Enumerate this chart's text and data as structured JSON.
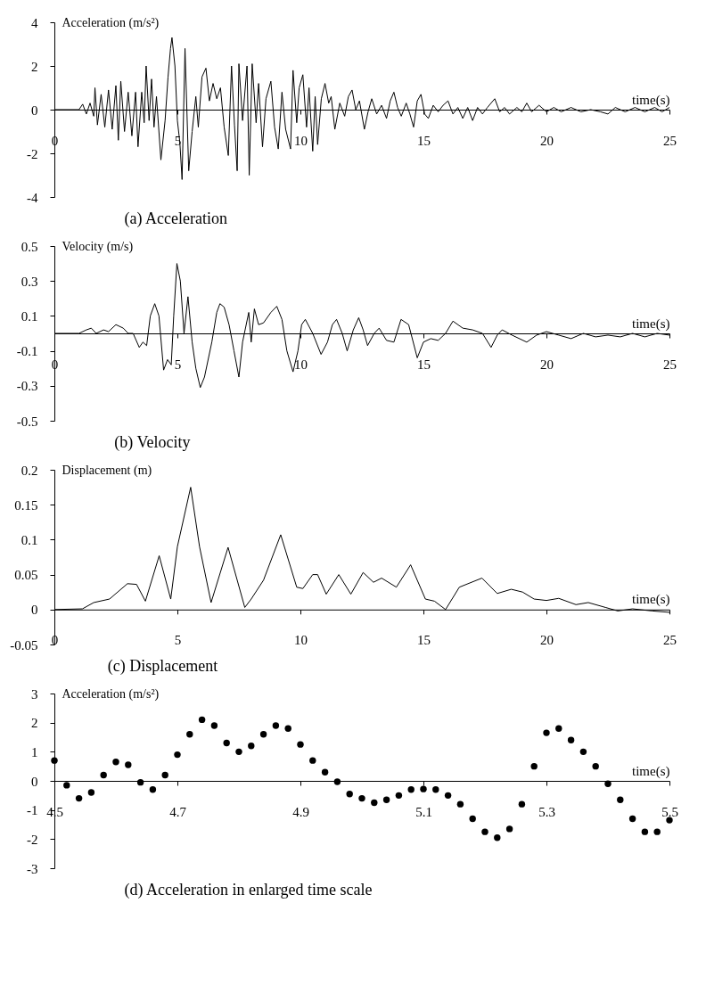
{
  "chart_data": [
    {
      "type": "line",
      "title": "(a)  Acceleration",
      "xlabel": "time(s)",
      "ylabel": "Acceleration (m/s²)",
      "color": "#000000",
      "x": [
        0,
        1.0,
        1.15,
        1.3,
        1.45,
        1.6,
        1.65,
        1.75,
        1.9,
        2.05,
        2.2,
        2.35,
        2.5,
        2.6,
        2.7,
        2.85,
        3.0,
        3.15,
        3.3,
        3.4,
        3.55,
        3.65,
        3.73,
        3.85,
        3.95,
        4.05,
        4.15,
        4.33,
        4.5,
        4.62,
        4.72,
        4.78,
        4.9,
        5.0,
        5.1,
        5.19,
        5.31,
        5.46,
        5.6,
        5.75,
        5.85,
        6.0,
        6.16,
        6.3,
        6.45,
        6.6,
        6.75,
        6.9,
        7.07,
        7.2,
        7.32,
        7.43,
        7.5,
        7.65,
        7.83,
        7.92,
        8.04,
        8.2,
        8.3,
        8.46,
        8.6,
        8.8,
        8.95,
        9.1,
        9.25,
        9.4,
        9.6,
        9.7,
        9.85,
        9.95,
        10.1,
        10.25,
        10.35,
        10.5,
        10.6,
        10.7,
        10.85,
        11.0,
        11.15,
        11.25,
        11.4,
        11.6,
        11.8,
        11.95,
        12.1,
        12.25,
        12.4,
        12.6,
        12.75,
        12.9,
        13.1,
        13.3,
        13.5,
        13.65,
        13.8,
        13.95,
        14.1,
        14.3,
        14.45,
        14.6,
        14.75,
        14.9,
        15.05,
        15.2,
        15.4,
        15.6,
        15.8,
        16.0,
        16.2,
        16.4,
        16.6,
        16.8,
        17.0,
        17.2,
        17.4,
        17.6,
        17.9,
        18.1,
        18.3,
        18.5,
        18.8,
        19.0,
        19.2,
        19.4,
        19.7,
        20.0,
        20.3,
        20.6,
        21.0,
        21.4,
        21.8,
        22.2,
        22.5,
        22.8,
        23.2,
        23.6,
        24.0,
        24.4,
        24.7,
        25.0
      ],
      "values": [
        0,
        0,
        0.25,
        -0.2,
        0.3,
        -0.3,
        1.0,
        -0.7,
        0.7,
        -0.8,
        0.9,
        -0.9,
        1.1,
        -1.4,
        1.3,
        -1.0,
        0.8,
        -1.2,
        0.8,
        -1.7,
        0.8,
        -0.6,
        2.0,
        -0.5,
        1.4,
        -0.8,
        0.6,
        -2.3,
        -0.5,
        1.5,
        2.8,
        3.3,
        2.0,
        -0.5,
        -1.5,
        -3.2,
        2.8,
        -2.8,
        -1.0,
        0.6,
        -0.8,
        1.5,
        1.9,
        0.4,
        1.2,
        0.5,
        1.0,
        -0.8,
        -2.1,
        2.0,
        -0.7,
        -2.8,
        2.1,
        -0.5,
        2.0,
        -3.0,
        2.1,
        -0.6,
        1.2,
        -1.7,
        0.5,
        1.3,
        -0.8,
        -1.8,
        0.8,
        -0.9,
        -1.8,
        1.8,
        -0.6,
        1.0,
        1.6,
        -0.8,
        1.0,
        -1.9,
        0.6,
        -1.6,
        0.5,
        1.2,
        0.3,
        0.6,
        -0.9,
        0.3,
        -0.3,
        0.6,
        0.9,
        0.0,
        0.4,
        -0.9,
        -0.1,
        0.5,
        -0.2,
        0.2,
        -0.4,
        0.4,
        0.8,
        0.1,
        -0.3,
        0.3,
        -0.2,
        -0.8,
        0.4,
        0.7,
        -0.2,
        -0.4,
        0.2,
        -0.1,
        0.2,
        0.4,
        -0.2,
        0.1,
        -0.4,
        0.1,
        -0.5,
        0.1,
        -0.2,
        0.1,
        0.5,
        -0.1,
        0.1,
        -0.2,
        0.1,
        -0.1,
        0.3,
        -0.1,
        0.2,
        -0.1,
        0.1,
        -0.1,
        0.1,
        -0.1,
        0.0,
        -0.1,
        -0.2,
        0.1,
        -0.1,
        0.1,
        -0.1,
        0.1,
        -0.1,
        0.1
      ],
      "xlim": [
        0,
        25
      ],
      "xticks": [
        0,
        5,
        10,
        15,
        20,
        25
      ],
      "ylim": [
        -4,
        4
      ],
      "yticks": [
        -4,
        -2,
        0,
        2,
        4
      ]
    },
    {
      "type": "line",
      "title": "(b)  Velocity",
      "xlabel": "time(s)",
      "ylabel": "Velocity  (m/s)",
      "color": "#000000",
      "x": [
        0,
        1.0,
        1.3,
        1.5,
        1.7,
        2.0,
        2.2,
        2.5,
        2.8,
        3.0,
        3.2,
        3.45,
        3.6,
        3.75,
        3.9,
        4.08,
        4.25,
        4.44,
        4.6,
        4.75,
        4.85,
        4.98,
        5.12,
        5.27,
        5.43,
        5.6,
        5.75,
        5.93,
        6.1,
        6.4,
        6.6,
        6.73,
        6.9,
        7.1,
        7.3,
        7.5,
        7.65,
        7.9,
        8.0,
        8.13,
        8.3,
        8.5,
        8.8,
        9.04,
        9.25,
        9.45,
        9.7,
        9.9,
        10.05,
        10.2,
        10.5,
        10.84,
        11.1,
        11.3,
        11.47,
        11.7,
        11.9,
        12.15,
        12.37,
        12.55,
        12.73,
        13.0,
        13.2,
        13.5,
        13.8,
        14.09,
        14.4,
        14.75,
        15.0,
        15.3,
        15.6,
        15.9,
        16.2,
        16.6,
        17.0,
        17.4,
        17.75,
        18.0,
        18.2,
        18.6,
        19.2,
        19.6,
        20.0,
        20.5,
        21.0,
        21.5,
        22.0,
        22.5,
        23.0,
        23.5,
        24.0,
        24.5,
        25.0
      ],
      "values": [
        0,
        0,
        0.02,
        0.03,
        0.0,
        0.02,
        0.01,
        0.05,
        0.03,
        0.0,
        0.0,
        -0.08,
        -0.05,
        -0.07,
        0.1,
        0.17,
        0.1,
        -0.21,
        -0.15,
        -0.18,
        0.1,
        0.4,
        0.3,
        0.0,
        0.21,
        -0.05,
        -0.2,
        -0.31,
        -0.25,
        -0.05,
        0.12,
        0.17,
        0.15,
        0.05,
        -0.1,
        -0.25,
        -0.05,
        0.12,
        -0.05,
        0.14,
        0.05,
        0.06,
        0.12,
        0.155,
        0.08,
        -0.1,
        -0.22,
        -0.1,
        0.05,
        0.08,
        0.0,
        -0.12,
        -0.05,
        0.05,
        0.08,
        0.0,
        -0.1,
        0.02,
        0.09,
        0.02,
        -0.07,
        0.0,
        0.03,
        -0.04,
        -0.05,
        0.08,
        0.05,
        -0.14,
        -0.05,
        -0.03,
        -0.04,
        0.0,
        0.07,
        0.03,
        0.02,
        0.0,
        -0.08,
        -0.01,
        0.02,
        -0.01,
        -0.05,
        -0.01,
        0.01,
        -0.01,
        -0.03,
        0.0,
        -0.02,
        -0.01,
        -0.02,
        0.0,
        -0.02,
        0.0,
        -0.01
      ],
      "xlim": [
        0,
        25
      ],
      "xticks": [
        0,
        5,
        10,
        15,
        20,
        25
      ],
      "ylim": [
        -0.5,
        0.5
      ],
      "yticks": [
        -0.5,
        -0.3,
        -0.1,
        0.1,
        0.3,
        0.5
      ]
    },
    {
      "type": "line",
      "title": "(c)  Displacement",
      "xlabel": "time(s)",
      "ylabel": "Displacement (m)",
      "color": "#000000",
      "x": [
        0,
        1.14,
        1.6,
        2.24,
        2.97,
        3.34,
        3.7,
        4.26,
        4.73,
        5.0,
        5.54,
        5.9,
        6.37,
        7.06,
        7.74,
        8.0,
        8.5,
        9.2,
        9.85,
        10.1,
        10.5,
        10.7,
        11.05,
        11.56,
        12.05,
        12.55,
        12.97,
        13.3,
        13.9,
        14.48,
        15.08,
        15.45,
        15.9,
        16.46,
        17.38,
        18.0,
        18.57,
        19.03,
        19.5,
        20.0,
        20.5,
        21.2,
        21.7,
        22.4,
        22.9,
        23.5,
        24.3,
        25
      ],
      "values": [
        0,
        0.001,
        0.01,
        0.015,
        0.037,
        0.036,
        0.012,
        0.077,
        0.015,
        0.09,
        0.175,
        0.09,
        0.01,
        0.089,
        0.003,
        0.015,
        0.042,
        0.107,
        0.032,
        0.03,
        0.05,
        0.05,
        0.022,
        0.05,
        0.022,
        0.053,
        0.039,
        0.045,
        0.032,
        0.064,
        0.015,
        0.012,
        0,
        0.032,
        0.045,
        0.023,
        0.029,
        0.025,
        0.015,
        0.013,
        0.016,
        0.007,
        0.01,
        0.003,
        -0.002,
        0.001,
        -0.002,
        -0.004
      ],
      "xlim": [
        0,
        25
      ],
      "xticks": [
        0,
        5,
        10,
        15,
        20,
        25
      ],
      "ylim": [
        -0.05,
        0.2
      ],
      "yticks": [
        -0.05,
        0,
        0.05,
        0.1,
        0.15,
        0.2
      ]
    },
    {
      "type": "scatter",
      "title": "(d)  Acceleration in enlarged time scale",
      "xlabel": "time(s)",
      "ylabel": "Acceleration  (m/s²)",
      "color": "#000000",
      "marker": "circle",
      "x": [
        4.5,
        4.52,
        4.54,
        4.56,
        4.58,
        4.6,
        4.62,
        4.64,
        4.66,
        4.68,
        4.7,
        4.72,
        4.74,
        4.76,
        4.78,
        4.8,
        4.82,
        4.84,
        4.86,
        4.88,
        4.9,
        4.92,
        4.94,
        4.96,
        4.98,
        5.0,
        5.02,
        5.04,
        5.06,
        5.08,
        5.1,
        5.12,
        5.14,
        5.16,
        5.18,
        5.2,
        5.22,
        5.24,
        5.26,
        5.28,
        5.3,
        5.32,
        5.34,
        5.36,
        5.38,
        5.4,
        5.42,
        5.44,
        5.46,
        5.48,
        5.5
      ],
      "values": [
        0.7,
        -0.15,
        -0.6,
        -0.4,
        0.2,
        0.65,
        0.55,
        -0.05,
        -0.3,
        0.2,
        0.9,
        1.6,
        2.1,
        1.9,
        1.3,
        1.0,
        1.2,
        1.6,
        1.9,
        1.8,
        1.25,
        0.7,
        0.3,
        -0.03,
        -0.45,
        -0.6,
        -0.75,
        -0.65,
        -0.5,
        -0.3,
        -0.28,
        -0.3,
        -0.5,
        -0.8,
        -1.3,
        -1.75,
        -1.95,
        -1.65,
        -0.8,
        0.5,
        1.65,
        1.8,
        1.4,
        1.0,
        0.5,
        -0.1,
        -0.65,
        -1.3,
        -1.75,
        -1.75,
        -1.35
      ],
      "xlim": [
        4.5,
        5.5
      ],
      "xticks": [
        4.5,
        4.7,
        4.9,
        5.1,
        5.3,
        5.5
      ],
      "ylim": [
        -3,
        3
      ],
      "yticks": [
        -3,
        -2,
        -1,
        0,
        1,
        2,
        3
      ]
    }
  ]
}
